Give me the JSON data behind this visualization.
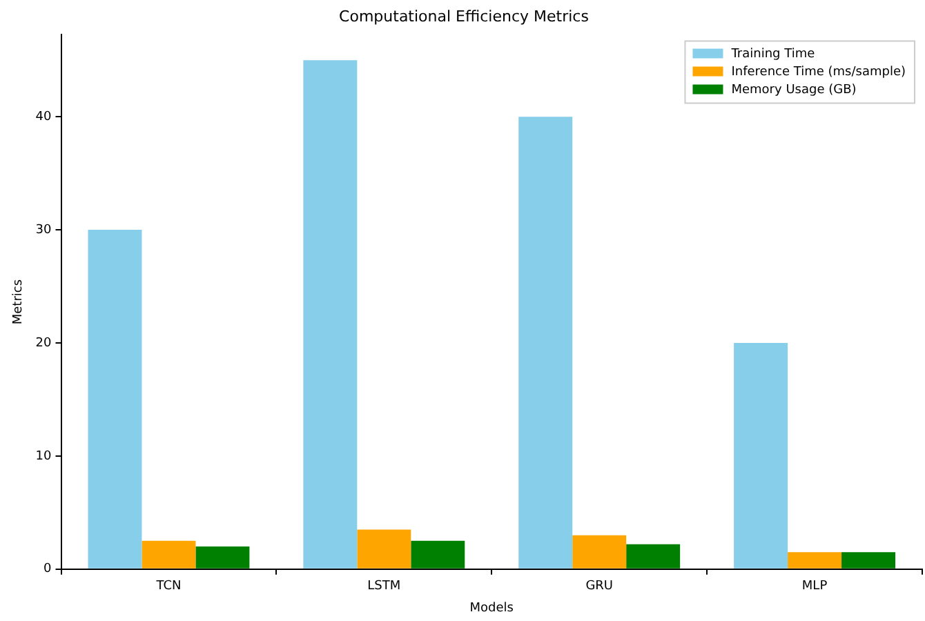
{
  "chart_data": {
    "type": "bar",
    "title": "Computational Efficiency Metrics",
    "xlabel": "Models",
    "ylabel": "Metrics",
    "categories": [
      "TCN",
      "LSTM",
      "GRU",
      "MLP"
    ],
    "series": [
      {
        "name": "Training Time",
        "color": "#87ceeb",
        "values": [
          30,
          45,
          40,
          20
        ]
      },
      {
        "name": "Inference Time (ms/sample)",
        "color": "#ffa500",
        "values": [
          2.5,
          3.5,
          3.0,
          1.5
        ]
      },
      {
        "name": "Memory Usage (GB)",
        "color": "#008000",
        "values": [
          2.0,
          2.5,
          2.2,
          1.5
        ]
      }
    ],
    "ylim": [
      0,
      47.25
    ],
    "yticks": [
      0,
      10,
      20,
      30,
      40
    ],
    "grid": false,
    "legend": "top right"
  }
}
